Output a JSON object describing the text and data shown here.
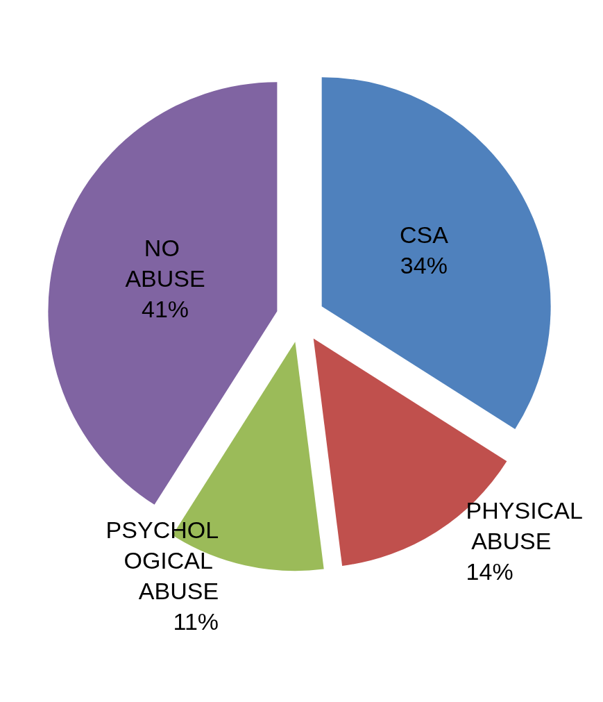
{
  "chart_data": {
    "type": "pie",
    "categories": [
      "CSA",
      "PHYSICAL ABUSE",
      "PSYCHOLOGICAL ABUSE",
      "NO ABUSE"
    ],
    "values": [
      34,
      14,
      11,
      41
    ],
    "value_labels": [
      "34%",
      "14%",
      "11%",
      "41%"
    ],
    "colors": [
      "#4f81bd",
      "#c0504d",
      "#9bbb59",
      "#8064a2"
    ],
    "legend": false
  }
}
